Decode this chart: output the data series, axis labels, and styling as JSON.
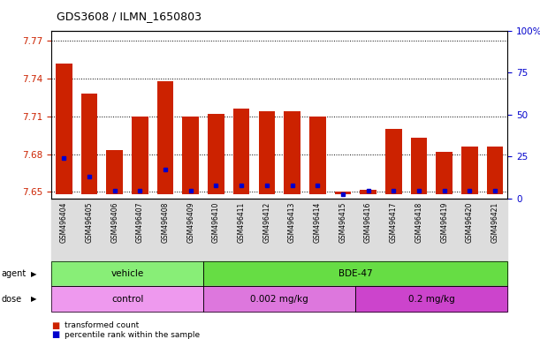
{
  "title": "GDS3608 / ILMN_1650803",
  "samples": [
    "GSM496404",
    "GSM496405",
    "GSM496406",
    "GSM496407",
    "GSM496408",
    "GSM496409",
    "GSM496410",
    "GSM496411",
    "GSM496412",
    "GSM496413",
    "GSM496414",
    "GSM496415",
    "GSM496416",
    "GSM496417",
    "GSM496418",
    "GSM496419",
    "GSM496420",
    "GSM496421"
  ],
  "bar_tops": [
    7.752,
    7.728,
    7.683,
    7.71,
    7.738,
    7.71,
    7.712,
    7.716,
    7.714,
    7.714,
    7.71,
    7.65,
    7.652,
    7.7,
    7.693,
    7.682,
    7.686,
    7.686
  ],
  "blue_dot_y": [
    7.677,
    7.662,
    7.651,
    7.651,
    7.668,
    7.651,
    7.655,
    7.655,
    7.655,
    7.655,
    7.655,
    7.648,
    7.651,
    7.651,
    7.651,
    7.651,
    7.651,
    7.651
  ],
  "bar_bottom": 7.648,
  "ylim_left": [
    7.645,
    7.778
  ],
  "ylim_right": [
    0,
    100
  ],
  "yticks_left": [
    7.65,
    7.68,
    7.71,
    7.74,
    7.77
  ],
  "yticks_right": [
    0,
    25,
    50,
    75,
    100
  ],
  "ytick_labels_left": [
    "7.65",
    "7.68",
    "7.71",
    "7.74",
    "7.77"
  ],
  "ytick_labels_right": [
    "0",
    "25",
    "50",
    "75",
    "100%"
  ],
  "bar_color": "#cc2200",
  "dot_color": "#0000cc",
  "agent_labels": [
    "vehicle",
    "BDE-47"
  ],
  "agent_ranges": [
    [
      0,
      6
    ],
    [
      6,
      18
    ]
  ],
  "agent_colors": [
    "#88ee77",
    "#66dd44"
  ],
  "dose_labels": [
    "control",
    "0.002 mg/kg",
    "0.2 mg/kg"
  ],
  "dose_ranges": [
    [
      0,
      6
    ],
    [
      6,
      12
    ],
    [
      12,
      18
    ]
  ],
  "dose_colors": [
    "#ee99ee",
    "#dd77dd",
    "#cc44cc"
  ],
  "legend_red": "transformed count",
  "legend_blue": "percentile rank within the sample",
  "row_label_agent": "agent",
  "row_label_dose": "dose",
  "bg_color": "#ffffff",
  "plot_bg": "#ffffff",
  "bar_width": 0.65,
  "xtick_bg": "#dddddd"
}
